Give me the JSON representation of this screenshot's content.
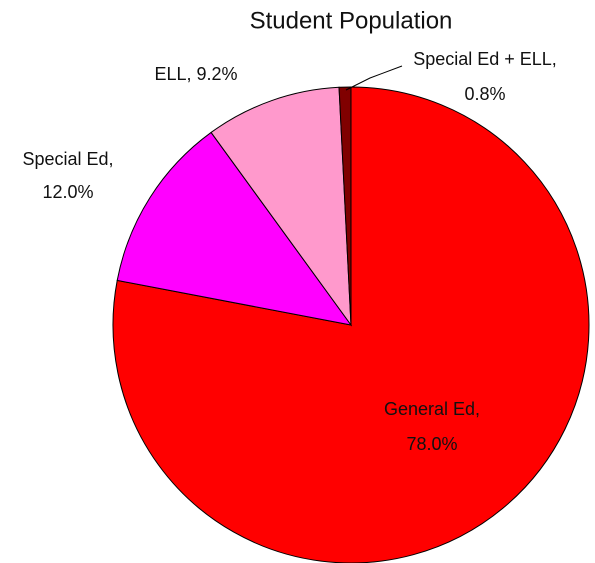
{
  "chart_data": {
    "type": "pie",
    "title": "Student Population",
    "categories": [
      "General Ed,",
      "Special Ed,",
      "ELL,",
      "Special Ed + ELL,"
    ],
    "values": [
      78.0,
      12.0,
      9.2,
      0.8
    ],
    "value_labels": [
      "78.0%",
      "12.0%",
      "9.2%",
      "0.8%"
    ],
    "colors": [
      "#ff0000",
      "#ff00ff",
      "#ff99cc",
      "#800000"
    ]
  }
}
